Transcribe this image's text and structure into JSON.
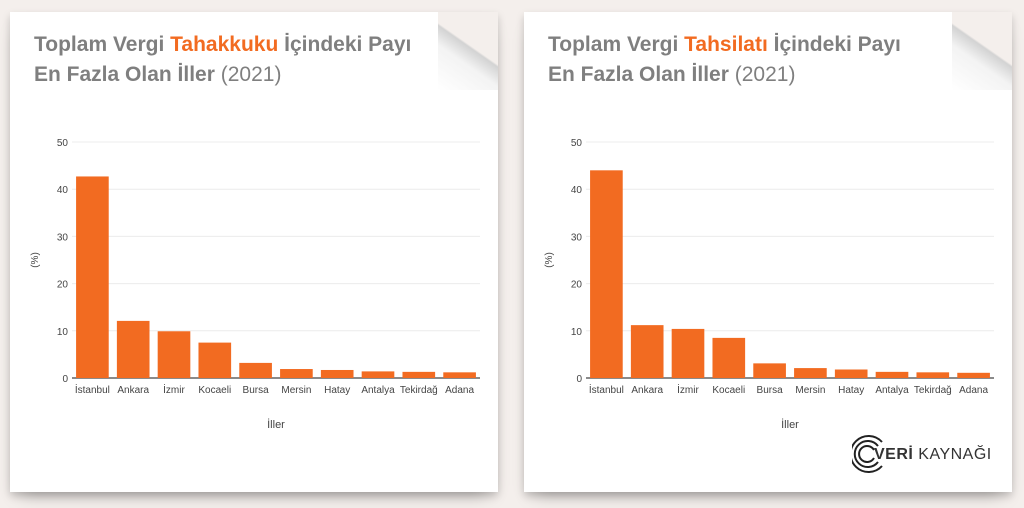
{
  "charts": [
    {
      "title_part1": "Toplam Vergi ",
      "title_highlight": "Tahakkuku",
      "title_part2": " İçindeki Payı",
      "title_line2": "En Fazla Olan İller",
      "title_year": "(2021)"
    },
    {
      "title_part1": "Toplam Vergi ",
      "title_highlight": "Tahsilatı",
      "title_part2": " İçindeki Payı",
      "title_line2": "En Fazla Olan İller",
      "title_year": "(2021)"
    }
  ],
  "logo": {
    "bold": "VERİ",
    "rest": " KAYNAĞI"
  },
  "colors": {
    "bar": "#f26b21",
    "title": "#7f7f7f",
    "highlight": "#f26b21"
  },
  "chart_data": [
    {
      "type": "bar",
      "title": "Toplam Vergi Tahakkuku İçindeki Payı En Fazla Olan İller (2021)",
      "categories": [
        "İstanbul",
        "Ankara",
        "İzmir",
        "Kocaeli",
        "Bursa",
        "Mersin",
        "Hatay",
        "Antalya",
        "Tekirdağ",
        "Adana"
      ],
      "values": [
        42.7,
        12.1,
        9.9,
        7.5,
        3.2,
        1.9,
        1.7,
        1.4,
        1.3,
        1.2
      ],
      "xlabel": "İller",
      "ylabel": "(%)",
      "ylim": [
        0,
        50
      ],
      "yticks": [
        0,
        10,
        20,
        30,
        40,
        50
      ],
      "grid": true,
      "legend": "none"
    },
    {
      "type": "bar",
      "title": "Toplam Vergi Tahsilatı İçindeki Payı En Fazla Olan İller (2021)",
      "categories": [
        "İstanbul",
        "Ankara",
        "İzmir",
        "Kocaeli",
        "Bursa",
        "Mersin",
        "Hatay",
        "Antalya",
        "Tekirdağ",
        "Adana"
      ],
      "values": [
        44.0,
        11.2,
        10.4,
        8.5,
        3.1,
        2.1,
        1.8,
        1.3,
        1.2,
        1.1
      ],
      "xlabel": "İller",
      "ylabel": "(%)",
      "ylim": [
        0,
        50
      ],
      "yticks": [
        0,
        10,
        20,
        30,
        40,
        50
      ],
      "grid": true,
      "legend": "none"
    }
  ]
}
